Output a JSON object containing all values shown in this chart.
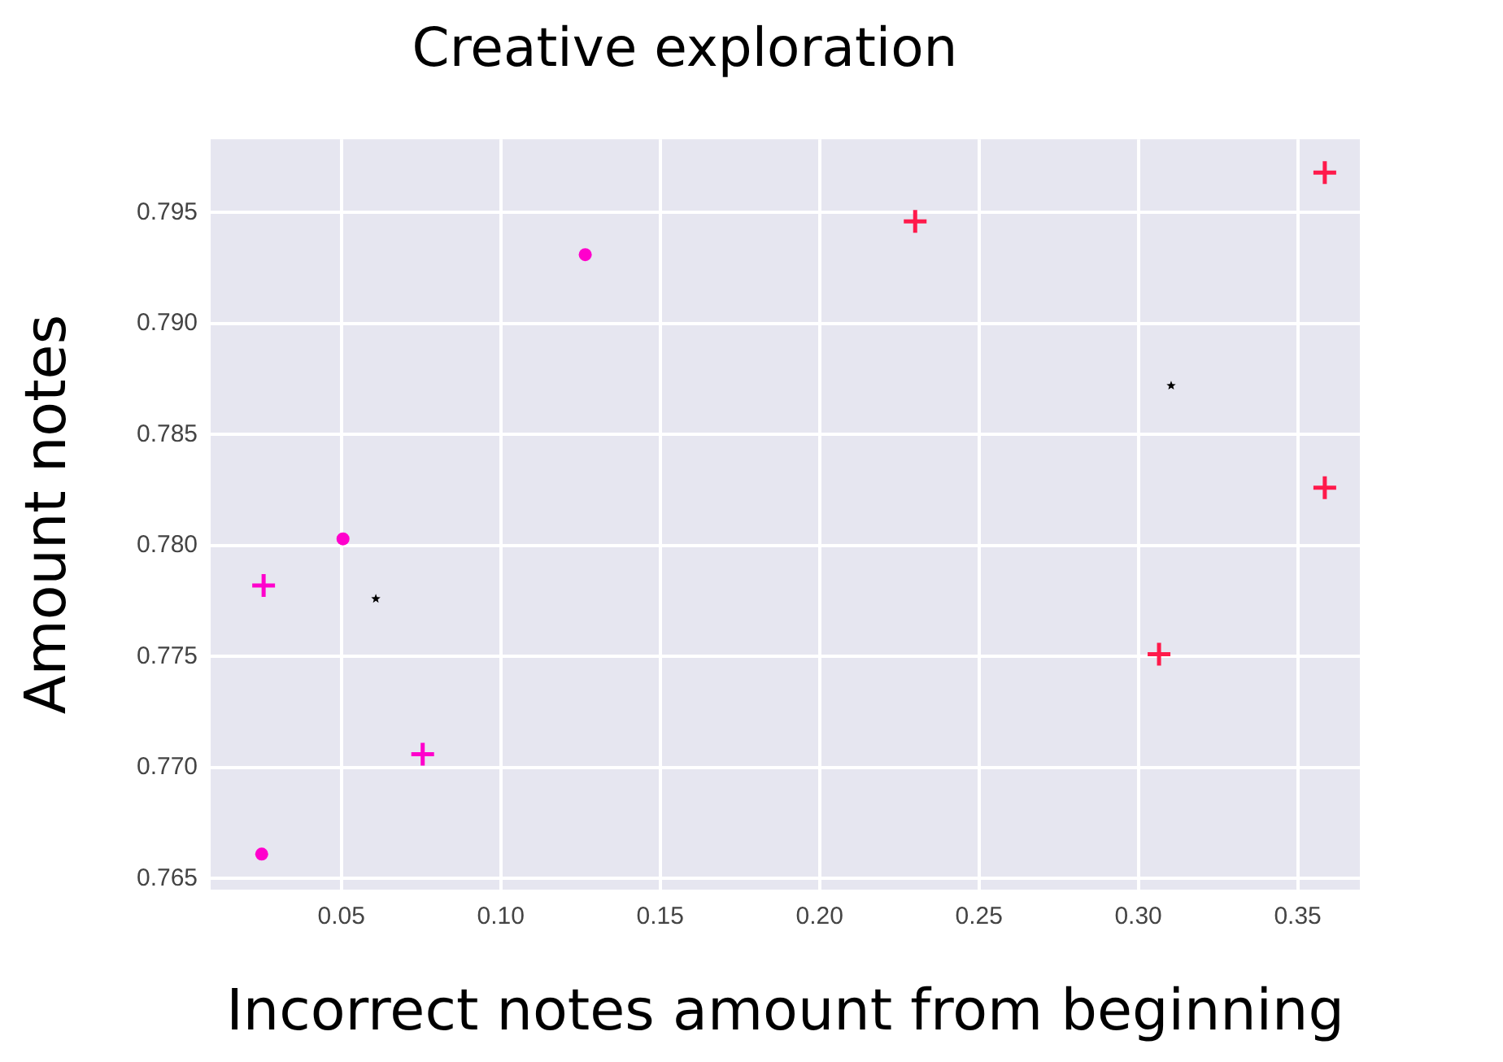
{
  "chart_data": {
    "type": "scatter",
    "title": "Creative exploration",
    "xlabel": "Incorrect notes amount from beginning",
    "ylabel": "Amount notes",
    "xlim": [
      0.009,
      0.3695
    ],
    "ylim": [
      0.7645,
      0.7983
    ],
    "xticks": [
      {
        "value": 0.05,
        "label": "0.05"
      },
      {
        "value": 0.1,
        "label": "0.10"
      },
      {
        "value": 0.15,
        "label": "0.15"
      },
      {
        "value": 0.2,
        "label": "0.20"
      },
      {
        "value": 0.25,
        "label": "0.25"
      },
      {
        "value": 0.3,
        "label": "0.30"
      },
      {
        "value": 0.35,
        "label": "0.35"
      }
    ],
    "yticks": [
      {
        "value": 0.765,
        "label": "0.765"
      },
      {
        "value": 0.77,
        "label": "0.770"
      },
      {
        "value": 0.775,
        "label": "0.775"
      },
      {
        "value": 0.78,
        "label": "0.780"
      },
      {
        "value": 0.785,
        "label": "0.785"
      },
      {
        "value": 0.79,
        "label": "0.790"
      },
      {
        "value": 0.795,
        "label": "0.795"
      }
    ],
    "grid": true,
    "legend": false,
    "series": [
      {
        "color": "#ff00cc",
        "marker": "circle",
        "x": [
          0.1265,
          0.0505,
          0.025
        ],
        "values": [
          0.7931,
          0.7803,
          0.7661
        ]
      },
      {
        "color": "#ff00cc",
        "marker": "cross",
        "x": [
          0.0256,
          0.0755
        ],
        "values": [
          0.7782,
          0.7706
        ]
      },
      {
        "color": "#ff1a4b",
        "marker": "cross",
        "x": [
          0.23,
          0.3585,
          0.3585,
          0.3065
        ],
        "values": [
          0.7946,
          0.7968,
          0.7826,
          0.7751
        ]
      },
      {
        "color": "#000000",
        "marker": "star",
        "x": [
          0.0608,
          0.3103
        ],
        "values": [
          0.7776,
          0.7872
        ]
      }
    ]
  }
}
